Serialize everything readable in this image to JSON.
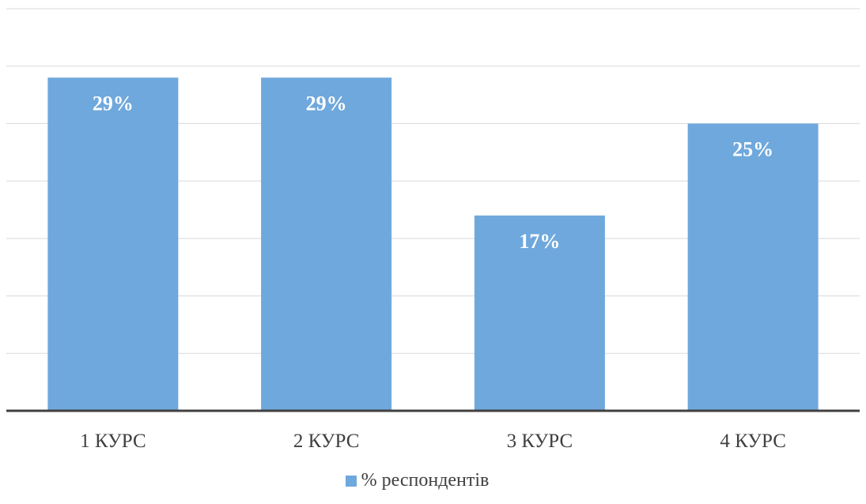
{
  "chart_data": {
    "type": "bar",
    "categories": [
      "1 КУРС",
      "2 КУРС",
      "3 КУРС",
      "4 КУРС"
    ],
    "series": [
      {
        "name": "% респондентів",
        "values": [
          29,
          29,
          17,
          25
        ],
        "data_labels": [
          "29%",
          "29%",
          "17%",
          "25%"
        ]
      }
    ],
    "title": "",
    "xlabel": "",
    "ylabel": "",
    "ylim": [
      0,
      35
    ],
    "grid": true,
    "legend_position": "bottom",
    "colors": {
      "bar": "#6fa8dc",
      "grid": "#d9d9d9",
      "axis": "#404040",
      "label": "#ffffff",
      "tick_text": "#404040"
    }
  }
}
